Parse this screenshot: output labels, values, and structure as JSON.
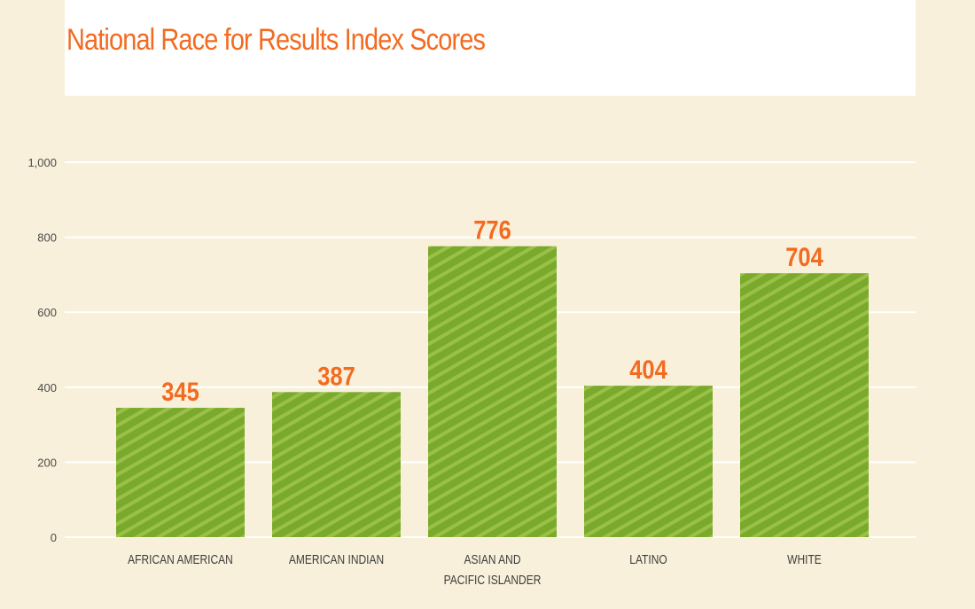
{
  "chart_data": {
    "type": "bar",
    "title": "National Race for Results Index Scores",
    "categories": [
      [
        "AFRICAN AMERICAN"
      ],
      [
        "AMERICAN INDIAN"
      ],
      [
        "ASIAN AND",
        "PACIFIC ISLANDER"
      ],
      [
        "LATINO"
      ],
      [
        "WHITE"
      ]
    ],
    "values": [
      345,
      387,
      776,
      404,
      704
    ],
    "value_labels": [
      "345",
      "387",
      "776",
      "404",
      "704"
    ],
    "yticks": [
      0,
      200,
      400,
      600,
      800,
      1000
    ],
    "ytick_labels": [
      "0",
      "200",
      "400",
      "600",
      "800",
      "1,000"
    ],
    "ylim": [
      0,
      1000
    ],
    "grid": true,
    "colors": {
      "bar": "#7aaa2c",
      "bar_stripe": "#9bc04a",
      "value_label": "#f26b21",
      "title": "#f26b21",
      "background": "#f8f0da",
      "gridline": "#ffffff"
    }
  }
}
